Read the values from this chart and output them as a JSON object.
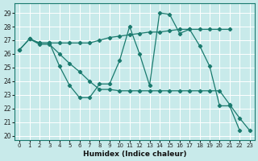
{
  "xlabel": "Humidex (Indice chaleur)",
  "bg_color": "#c8eaea",
  "line_color": "#1a7a6e",
  "grid_color": "#ffffff",
  "xlim": [
    -0.5,
    23.5
  ],
  "ylim": [
    19.7,
    29.7
  ],
  "yticks": [
    20,
    21,
    22,
    23,
    24,
    25,
    26,
    27,
    28,
    29
  ],
  "xticks": [
    0,
    1,
    2,
    3,
    4,
    5,
    6,
    7,
    8,
    9,
    10,
    11,
    12,
    13,
    14,
    15,
    16,
    17,
    18,
    19,
    20,
    21,
    22,
    23
  ],
  "line1_x": [
    0,
    1,
    2,
    3,
    4,
    5,
    6,
    7,
    8,
    9,
    10,
    11,
    12,
    13,
    14,
    15,
    16,
    17,
    18,
    19,
    20,
    21
  ],
  "line1_y": [
    26.3,
    27.1,
    26.8,
    26.8,
    26.8,
    26.8,
    26.8,
    26.8,
    27.0,
    27.2,
    27.3,
    27.4,
    27.5,
    27.6,
    27.6,
    27.7,
    27.8,
    27.8,
    27.8,
    27.8,
    27.8,
    27.8
  ],
  "line2_x": [
    1,
    2,
    3,
    4,
    5,
    6,
    7,
    8,
    9,
    10,
    11,
    12,
    13,
    14,
    15,
    16,
    17,
    18,
    19,
    20,
    21,
    22
  ],
  "line2_y": [
    27.1,
    26.8,
    26.8,
    25.1,
    23.7,
    22.8,
    22.8,
    23.8,
    23.8,
    25.5,
    28.0,
    26.0,
    23.7,
    29.0,
    28.9,
    27.5,
    27.8,
    26.6,
    25.1,
    22.2,
    22.2,
    20.4
  ],
  "line3_x": [
    0,
    1,
    2,
    3,
    4,
    5,
    6,
    7,
    8,
    9,
    10,
    11,
    12,
    13,
    14,
    15,
    16,
    17,
    18,
    19,
    20,
    21,
    22,
    23
  ],
  "line3_y": [
    26.3,
    27.1,
    26.7,
    26.7,
    26.0,
    25.3,
    24.7,
    24.0,
    23.4,
    23.4,
    23.3,
    23.3,
    23.3,
    23.3,
    23.3,
    23.3,
    23.3,
    23.3,
    23.3,
    23.3,
    23.3,
    22.3,
    21.3,
    20.4
  ]
}
